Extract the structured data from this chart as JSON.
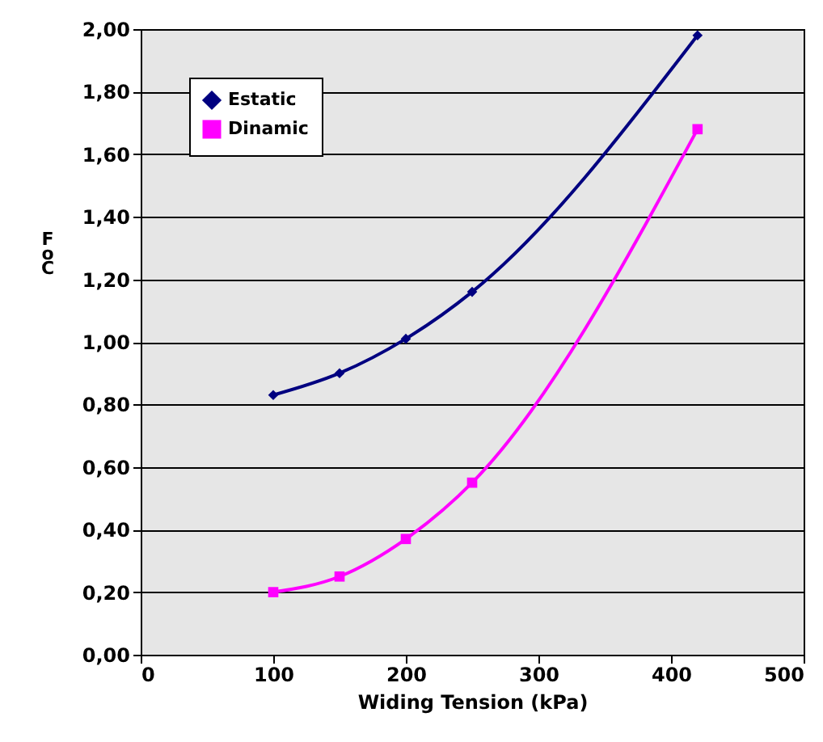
{
  "chart_data": {
    "type": "line",
    "xlabel": "Widing Tension (kPa)",
    "ylabel": "FoC",
    "xlim": [
      0,
      500
    ],
    "xticks": [
      0,
      100,
      200,
      300,
      400,
      500
    ],
    "ylim": [
      0,
      2
    ],
    "yticks": [
      {
        "value": 0,
        "label": "0,00"
      },
      {
        "value": 0.2,
        "label": "0,20"
      },
      {
        "value": 0.4,
        "label": "0,40"
      },
      {
        "value": 0.6,
        "label": "0,60"
      },
      {
        "value": 0.8,
        "label": "0,80"
      },
      {
        "value": 1,
        "label": "1,00"
      },
      {
        "value": 1.2,
        "label": "1,20"
      },
      {
        "value": 1.4,
        "label": "1,40"
      },
      {
        "value": 1.6,
        "label": "1,60"
      },
      {
        "value": 1.8,
        "label": "1,80"
      },
      {
        "value": 2,
        "label": "2,00"
      }
    ],
    "grid": "y",
    "legend": "top left",
    "x": [
      100,
      150,
      200,
      250,
      420
    ],
    "series": [
      {
        "name": "Estatic",
        "color": "#000080",
        "marker": "diamond",
        "values": [
          0.83,
          0.9,
          1.01,
          1.16,
          1.98
        ]
      },
      {
        "name": "Dinamic",
        "color": "#ff00ff",
        "marker": "square",
        "values": [
          0.2,
          0.25,
          0.37,
          0.55,
          1.68
        ]
      }
    ]
  }
}
